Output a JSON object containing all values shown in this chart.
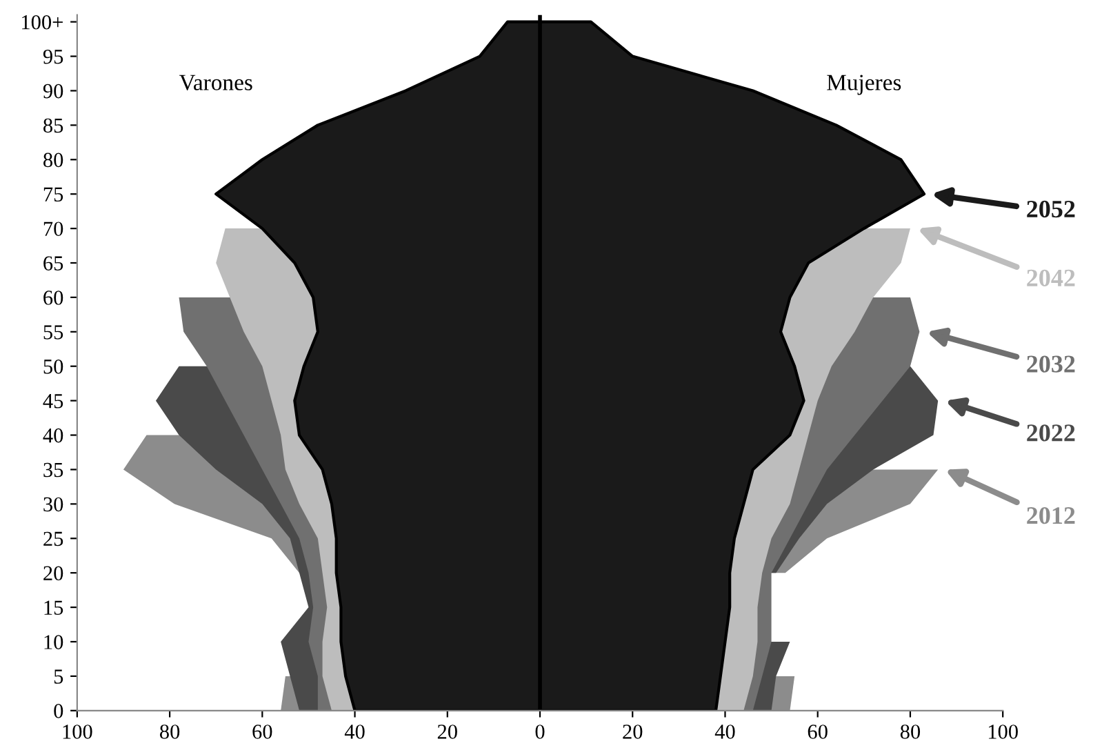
{
  "chart_data": {
    "type": "area",
    "orientation": "horizontal",
    "xlim": [
      -100,
      100
    ],
    "ylim": [
      0,
      101
    ],
    "xticks": [
      {
        "value": -100,
        "label": "100"
      },
      {
        "value": -80,
        "label": "80"
      },
      {
        "value": -60,
        "label": "60"
      },
      {
        "value": -40,
        "label": "40"
      },
      {
        "value": -20,
        "label": "20"
      },
      0,
      20,
      40,
      60,
      80,
      100
    ],
    "yticks": [
      0,
      5,
      10,
      15,
      20,
      25,
      30,
      35,
      40,
      45,
      50,
      55,
      60,
      65,
      70,
      75,
      80,
      85,
      90,
      95,
      {
        "value": 100,
        "label": "100+"
      }
    ],
    "grid": false,
    "legend": "right",
    "ref_lines": [
      {
        "axis": "x",
        "value": 0,
        "color": "#000000"
      }
    ],
    "annotations": [
      "Varones",
      "Mujeres"
    ],
    "series": [
      {
        "color": "#8c8c8c",
        "x": [
          0,
          5,
          10,
          15,
          20,
          25,
          30,
          35,
          40
        ],
        "values": [
          -56,
          -55,
          null,
          null,
          -52,
          -58,
          -79,
          -90,
          -85
        ]
      },
      {
        "name": "2012",
        "color": "#8c8c8c",
        "x": [
          0,
          5,
          10,
          15,
          20,
          25,
          30,
          35
        ],
        "values": [
          54,
          55,
          null,
          null,
          53,
          62,
          80,
          86
        ]
      },
      {
        "color": "#4a4a4a",
        "x": [
          0,
          5,
          10,
          15,
          20,
          25,
          30,
          35,
          40,
          45,
          50
        ],
        "values": [
          -52,
          -54,
          -56,
          -50,
          -52,
          -54,
          -60,
          -70,
          -78,
          -83,
          -78
        ]
      },
      {
        "name": "2022",
        "color": "#4a4a4a",
        "x": [
          0,
          5,
          10,
          15,
          20,
          25,
          30,
          35,
          40,
          45,
          50
        ],
        "values": [
          50,
          51,
          54,
          null,
          51,
          56,
          62,
          72,
          85,
          86,
          80
        ]
      },
      {
        "color": "#707070",
        "x": [
          0,
          5,
          10,
          15,
          20,
          25,
          30,
          35,
          40,
          45,
          50,
          55,
          60
        ],
        "values": [
          -48,
          -48,
          -50,
          -49,
          -50,
          -52,
          -56,
          -60,
          -64,
          -68,
          -72,
          -77,
          -78
        ]
      },
      {
        "name": "2032",
        "color": "#707070",
        "x": [
          0,
          5,
          10,
          15,
          20,
          25,
          30,
          35,
          40,
          45,
          50,
          55,
          60
        ],
        "values": [
          46,
          48,
          50,
          50,
          50,
          54,
          58,
          62,
          68,
          74,
          80,
          82,
          80
        ]
      },
      {
        "color": "#bdbdbd",
        "x": [
          0,
          5,
          10,
          15,
          20,
          25,
          30,
          35,
          40,
          45,
          50,
          55,
          60,
          65,
          70
        ],
        "values": [
          -45,
          -47,
          -47,
          -46,
          -47,
          -48,
          -52,
          -55,
          -56,
          -58,
          -60,
          -64,
          -67,
          -70,
          -68
        ]
      },
      {
        "name": "2042",
        "color": "#bdbdbd",
        "x": [
          0,
          5,
          10,
          15,
          20,
          25,
          30,
          35,
          40,
          45,
          50,
          55,
          60,
          65,
          70
        ],
        "values": [
          44,
          46,
          47,
          47,
          48,
          50,
          54,
          56,
          58,
          60,
          63,
          68,
          72,
          78,
          80
        ]
      },
      {
        "color": "#1a1a1a",
        "x": [
          0,
          5,
          10,
          15,
          20,
          25,
          30,
          35,
          40,
          45,
          50,
          55,
          60,
          65,
          70,
          75,
          80,
          85,
          90,
          95,
          100
        ],
        "values": [
          -40,
          -42,
          -43,
          -43,
          -44,
          -44,
          -45,
          -47,
          -52,
          -53,
          -51,
          -48,
          -49,
          -53,
          -60,
          -70,
          -60,
          -48,
          -29,
          -13,
          -7
        ]
      },
      {
        "name": "2052",
        "color": "#1a1a1a",
        "x": [
          0,
          5,
          10,
          15,
          20,
          25,
          30,
          35,
          40,
          45,
          50,
          55,
          60,
          65,
          70,
          75,
          80,
          85,
          90,
          95,
          100
        ],
        "values": [
          38,
          39,
          40,
          41,
          41,
          42,
          44,
          46,
          54,
          57,
          55,
          52,
          54,
          58,
          70,
          83,
          78,
          64,
          46,
          20,
          11
        ]
      }
    ]
  }
}
